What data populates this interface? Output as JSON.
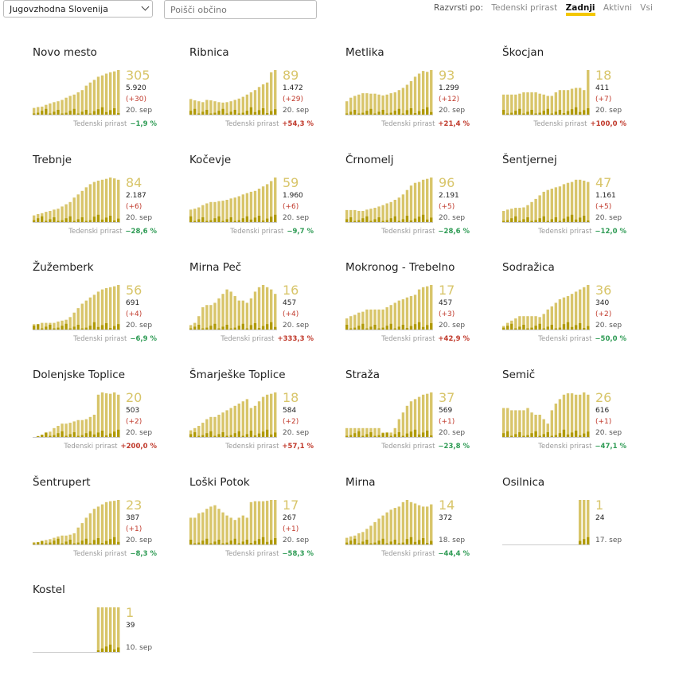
{
  "toolbar": {
    "region": "Jugovzhodna Slovenija",
    "search_placeholder": "Poišči občino",
    "sort_label": "Razvrsti po:",
    "sort_options": [
      "Tedenski prirast",
      "Zadnji",
      "Aktivni",
      "Vsi"
    ],
    "sort_active": "Zadnji"
  },
  "colors": {
    "bar_light": "#d8c56a",
    "bar_dark": "#b09a08",
    "growth_up": "#c0392b",
    "growth_down": "#2e9b54"
  },
  "growth_label": "Tedenski prirast",
  "municipalities": [
    {
      "name": "Novo mesto",
      "active": "305",
      "total": "5.920",
      "change": "(+30)",
      "date": "20. sep",
      "growth": "−1,9 %",
      "trend": "down",
      "bars": [
        0.15,
        0.17,
        0.18,
        0.22,
        0.25,
        0.28,
        0.3,
        0.33,
        0.38,
        0.42,
        0.45,
        0.5,
        0.55,
        0.65,
        0.72,
        0.78,
        0.85,
        0.88,
        0.92,
        0.95,
        0.97,
        1.0
      ]
    },
    {
      "name": "Ribnica",
      "active": "89",
      "total": "1.472",
      "change": "(+29)",
      "date": "20. sep",
      "growth": "+54,3 %",
      "trend": "up",
      "bars": [
        0.35,
        0.32,
        0.3,
        0.28,
        0.33,
        0.32,
        0.3,
        0.28,
        0.27,
        0.28,
        0.3,
        0.33,
        0.36,
        0.4,
        0.45,
        0.5,
        0.55,
        0.62,
        0.68,
        0.72,
        0.95,
        1.0
      ]
    },
    {
      "name": "Metlika",
      "active": "93",
      "total": "1.299",
      "change": "(+12)",
      "date": "20. sep",
      "growth": "+21,4 %",
      "trend": "up",
      "bars": [
        0.3,
        0.38,
        0.42,
        0.45,
        0.48,
        0.48,
        0.47,
        0.47,
        0.45,
        0.43,
        0.45,
        0.48,
        0.5,
        0.55,
        0.6,
        0.67,
        0.75,
        0.85,
        0.92,
        0.98,
        0.96,
        1.0
      ]
    },
    {
      "name": "Škocjan",
      "active": "18",
      "total": "411",
      "change": "(+7)",
      "date": "20. sep",
      "growth": "+100,0 %",
      "trend": "up",
      "bars": [
        0.45,
        0.45,
        0.45,
        0.45,
        0.47,
        0.5,
        0.5,
        0.5,
        0.5,
        0.47,
        0.45,
        0.42,
        0.42,
        0.5,
        0.55,
        0.55,
        0.55,
        0.58,
        0.6,
        0.6,
        0.55,
        1.0
      ]
    },
    {
      "name": "Trebnje",
      "active": "84",
      "total": "2.187",
      "change": "(+6)",
      "date": "20. sep",
      "growth": "−28,6 %",
      "trend": "down",
      "bars": [
        0.15,
        0.18,
        0.2,
        0.23,
        0.25,
        0.28,
        0.3,
        0.35,
        0.4,
        0.45,
        0.55,
        0.62,
        0.7,
        0.78,
        0.85,
        0.9,
        0.93,
        0.95,
        0.97,
        1.0,
        0.98,
        0.95
      ]
    },
    {
      "name": "Kočevje",
      "active": "59",
      "total": "1.960",
      "change": "(+6)",
      "date": "20. sep",
      "growth": "−9,7 %",
      "trend": "down",
      "bars": [
        0.28,
        0.3,
        0.33,
        0.38,
        0.42,
        0.45,
        0.45,
        0.47,
        0.48,
        0.5,
        0.53,
        0.55,
        0.58,
        0.62,
        0.65,
        0.68,
        0.7,
        0.75,
        0.8,
        0.85,
        0.92,
        1.0
      ]
    },
    {
      "name": "Črnomelj",
      "active": "96",
      "total": "2.191",
      "change": "(+5)",
      "date": "20. sep",
      "growth": "−28,6 %",
      "trend": "down",
      "bars": [
        0.27,
        0.27,
        0.27,
        0.25,
        0.25,
        0.28,
        0.3,
        0.32,
        0.35,
        0.38,
        0.42,
        0.45,
        0.5,
        0.55,
        0.62,
        0.72,
        0.82,
        0.88,
        0.9,
        0.95,
        0.97,
        1.0
      ]
    },
    {
      "name": "Šentjernej",
      "active": "47",
      "total": "1.161",
      "change": "(+5)",
      "date": "20. sep",
      "growth": "−12,0 %",
      "trend": "down",
      "bars": [
        0.25,
        0.28,
        0.3,
        0.32,
        0.32,
        0.33,
        0.38,
        0.45,
        0.52,
        0.6,
        0.68,
        0.72,
        0.75,
        0.78,
        0.8,
        0.85,
        0.88,
        0.9,
        0.95,
        0.95,
        0.93,
        0.9
      ]
    },
    {
      "name": "Žužemberk",
      "active": "56",
      "total": "691",
      "change": "(+4)",
      "date": "20. sep",
      "growth": "−6,9 %",
      "trend": "down",
      "bars": [
        0.12,
        0.12,
        0.15,
        0.15,
        0.15,
        0.15,
        0.18,
        0.2,
        0.22,
        0.28,
        0.38,
        0.48,
        0.58,
        0.65,
        0.72,
        0.78,
        0.85,
        0.9,
        0.93,
        0.95,
        0.97,
        1.0
      ]
    },
    {
      "name": "Mirna Peč",
      "active": "16",
      "total": "457",
      "change": "(+4)",
      "date": "20. sep",
      "growth": "+333,3 %",
      "trend": "up",
      "bars": [
        0.1,
        0.15,
        0.3,
        0.5,
        0.55,
        0.55,
        0.6,
        0.7,
        0.8,
        0.9,
        0.85,
        0.75,
        0.65,
        0.65,
        0.6,
        0.7,
        0.85,
        0.95,
        1.0,
        0.95,
        0.9,
        0.8
      ]
    },
    {
      "name": "Mokronog - Trebelno",
      "active": "17",
      "total": "457",
      "change": "(+3)",
      "date": "20. sep",
      "growth": "+42,9 %",
      "trend": "up",
      "bars": [
        0.25,
        0.3,
        0.33,
        0.38,
        0.4,
        0.45,
        0.45,
        0.45,
        0.45,
        0.45,
        0.5,
        0.55,
        0.6,
        0.65,
        0.68,
        0.72,
        0.75,
        0.78,
        0.9,
        0.95,
        0.97,
        1.0
      ]
    },
    {
      "name": "Sodražica",
      "active": "36",
      "total": "340",
      "change": "(+2)",
      "date": "20. sep",
      "growth": "−50,0 %",
      "trend": "down",
      "bars": [
        0.08,
        0.15,
        0.2,
        0.25,
        0.3,
        0.3,
        0.3,
        0.3,
        0.3,
        0.28,
        0.35,
        0.45,
        0.52,
        0.6,
        0.68,
        0.72,
        0.75,
        0.8,
        0.85,
        0.9,
        0.95,
        1.0
      ]
    },
    {
      "name": "Dolenjske Toplice",
      "active": "20",
      "total": "503",
      "change": "(+2)",
      "date": "20. sep",
      "growth": "+200,0 %",
      "trend": "up",
      "bars": [
        0.0,
        0.02,
        0.05,
        0.1,
        0.12,
        0.2,
        0.25,
        0.3,
        0.3,
        0.32,
        0.35,
        0.38,
        0.38,
        0.4,
        0.45,
        0.5,
        0.95,
        1.0,
        0.98,
        0.97,
        1.0,
        0.95
      ]
    },
    {
      "name": "Šmarješke Toplice",
      "active": "18",
      "total": "584",
      "change": "(+2)",
      "date": "20. sep",
      "growth": "+57,1 %",
      "trend": "up",
      "bars": [
        0.15,
        0.2,
        0.25,
        0.32,
        0.4,
        0.45,
        0.45,
        0.5,
        0.55,
        0.6,
        0.65,
        0.7,
        0.75,
        0.8,
        0.85,
        0.65,
        0.7,
        0.8,
        0.9,
        0.95,
        0.97,
        1.0
      ]
    },
    {
      "name": "Straža",
      "active": "37",
      "total": "569",
      "change": "(+1)",
      "date": "20. sep",
      "growth": "−23,8 %",
      "trend": "down",
      "bars": [
        0.2,
        0.2,
        0.2,
        0.2,
        0.2,
        0.2,
        0.2,
        0.2,
        0.2,
        0.1,
        0.1,
        0.1,
        0.2,
        0.4,
        0.55,
        0.7,
        0.8,
        0.85,
        0.9,
        0.95,
        0.97,
        1.0
      ]
    },
    {
      "name": "Semič",
      "active": "26",
      "total": "616",
      "change": "(+1)",
      "date": "20. sep",
      "growth": "−47,1 %",
      "trend": "down",
      "bars": [
        0.65,
        0.65,
        0.6,
        0.6,
        0.6,
        0.6,
        0.65,
        0.55,
        0.5,
        0.5,
        0.4,
        0.3,
        0.6,
        0.75,
        0.85,
        0.95,
        0.98,
        0.98,
        0.95,
        0.95,
        1.0,
        0.95
      ]
    },
    {
      "name": "Šentrupert",
      "active": "23",
      "total": "387",
      "change": "(+1)",
      "date": "20. sep",
      "growth": "−8,3 %",
      "trend": "down",
      "bars": [
        0.05,
        0.05,
        0.08,
        0.1,
        0.12,
        0.15,
        0.18,
        0.2,
        0.2,
        0.22,
        0.25,
        0.38,
        0.48,
        0.6,
        0.7,
        0.8,
        0.85,
        0.9,
        0.95,
        0.97,
        0.98,
        1.0
      ]
    },
    {
      "name": "Loški Potok",
      "active": "17",
      "total": "267",
      "change": "(+1)",
      "date": "20. sep",
      "growth": "−58,3 %",
      "trend": "down",
      "bars": [
        0.6,
        0.6,
        0.7,
        0.72,
        0.8,
        0.85,
        0.88,
        0.8,
        0.72,
        0.65,
        0.6,
        0.55,
        0.6,
        0.65,
        0.6,
        0.95,
        0.97,
        0.97,
        0.97,
        0.98,
        1.0,
        1.0
      ]
    },
    {
      "name": "Mirna",
      "active": "14",
      "total": "372",
      "change": "",
      "date": "18. sep",
      "growth": "−44,4 %",
      "trend": "down",
      "bars": [
        0.15,
        0.18,
        0.2,
        0.25,
        0.28,
        0.35,
        0.42,
        0.5,
        0.58,
        0.65,
        0.72,
        0.78,
        0.82,
        0.85,
        0.95,
        1.0,
        0.95,
        0.92,
        0.88,
        0.85,
        0.85,
        0.9
      ]
    },
    {
      "name": "Osilnica",
      "active": "1",
      "total": "24",
      "change": "",
      "date": "17. sep",
      "growth": "",
      "trend": "",
      "bars": [
        0,
        0,
        0,
        0,
        0,
        0,
        0,
        0,
        0,
        0,
        0,
        0,
        0,
        0,
        0,
        0,
        0,
        0,
        0,
        1.0,
        1.0,
        1.0
      ]
    },
    {
      "name": "Kostel",
      "active": "1",
      "total": "39",
      "change": "",
      "date": "10. sep",
      "growth": "",
      "trend": "",
      "bars": [
        0,
        0,
        0,
        0,
        0,
        0,
        0,
        0,
        0,
        0,
        0,
        0,
        0,
        0,
        0,
        0,
        1.0,
        1.0,
        1.0,
        1.0,
        1.0,
        1.0
      ]
    }
  ]
}
